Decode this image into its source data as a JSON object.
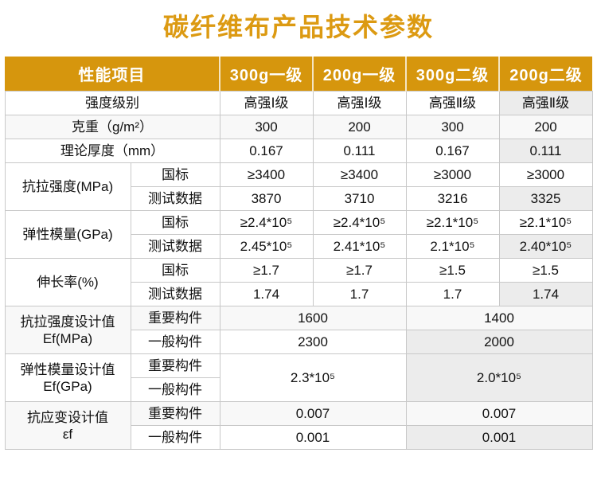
{
  "title": "碳纤维布产品技术参数",
  "colors": {
    "header_bg": "#D6960D",
    "title_text": "#DC9A12",
    "highlight_cell": "#ececec",
    "faint_row": "#f8f8f8",
    "border": "#c8c8c8"
  },
  "table": {
    "columns": {
      "performance": "性能项目",
      "g300_grade1": "300g一级",
      "g200_grade1": "200g一级",
      "g300_grade2": "300g二级",
      "g200_grade2": "200g二级"
    },
    "rows": {
      "strength_grade": {
        "label": "强度级别",
        "values": [
          "高强Ⅰ级",
          "高强Ⅰ级",
          "高强Ⅱ级",
          "高强Ⅱ级"
        ]
      },
      "weight": {
        "label": "克重（g/m²）",
        "values": [
          "300",
          "200",
          "300",
          "200"
        ]
      },
      "thickness": {
        "label": "理论厚度（mm）",
        "values": [
          "0.167",
          "0.111",
          "0.167",
          "0.111"
        ]
      },
      "tensile_strength": {
        "label": "抗拉强度(MPa)",
        "gb_label": "国标",
        "test_label": "测试数据",
        "gb_values": [
          "≥3400",
          "≥3400",
          "≥3000",
          "≥3000"
        ],
        "test_values": [
          "3870",
          "3710",
          "3216",
          "3325"
        ]
      },
      "elastic_modulus": {
        "label": "弹性模量(GPa)",
        "gb_label": "国标",
        "test_label": "测试数据",
        "gb_values": [
          "≥2.4*10⁵",
          "≥2.4*10⁵",
          "≥2.1*10⁵",
          "≥2.1*10⁵"
        ],
        "test_values": [
          "2.45*10⁵",
          "2.41*10⁵",
          "2.1*10⁵",
          "2.40*10⁵"
        ]
      },
      "elongation": {
        "label": "伸长率(%)",
        "gb_label": "国标",
        "test_label": "测试数据",
        "gb_values": [
          "≥1.7",
          "≥1.7",
          "≥1.5",
          "≥1.5"
        ],
        "test_values": [
          "1.74",
          "1.7",
          "1.7",
          "1.74"
        ]
      },
      "tensile_design": {
        "label": "抗拉强度设计值\nEf(MPa)",
        "important_label": "重要构件",
        "general_label": "一般构件",
        "important_values": [
          "1600",
          "1400"
        ],
        "general_values": [
          "2300",
          "2000"
        ]
      },
      "modulus_design": {
        "label": "弹性模量设计值\nEf(GPa)",
        "important_label": "重要构件",
        "general_label": "一般构件",
        "values": [
          "2.3*10⁵",
          "2.0*10⁵"
        ]
      },
      "strain_design": {
        "label": "抗应变设计值\nεf",
        "important_label": "重要构件",
        "general_label": "一般构件",
        "important_values": [
          "0.007",
          "0.007"
        ],
        "general_values": [
          "0.001",
          "0.001"
        ]
      }
    }
  }
}
